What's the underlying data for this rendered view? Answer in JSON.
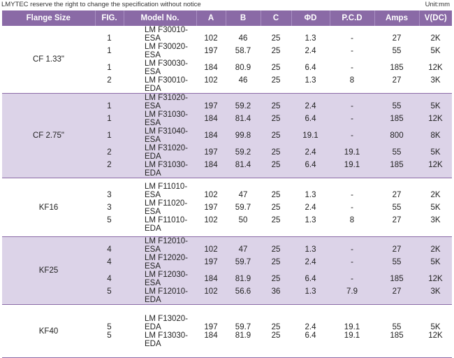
{
  "notice": "LMYTEC reserve the right to change the specification without notice",
  "unit": "Unit:mm",
  "headers": [
    "Flange Size",
    "FIG.",
    "Model No.",
    "A",
    "B",
    "C",
    "ΦD",
    "P.C.D",
    "Amps",
    "V(DC)"
  ],
  "groups": [
    {
      "flange": "CF 1.33\"",
      "shaded": false,
      "row_height": 18,
      "pad_top": 6,
      "pad_bottom": 6,
      "rows": [
        [
          "1",
          "LM F30010-ESA",
          "102",
          "46",
          "25",
          "1.3",
          "-",
          "27",
          "2K"
        ],
        [
          "1",
          "LM F30020-ESA",
          "197",
          "58.7",
          "25",
          "2.4",
          "-",
          "55",
          "5K"
        ],
        [
          "1",
          "LM F30030-ESA",
          "184",
          "80.9",
          "25",
          "6.4",
          "-",
          "185",
          "12K"
        ],
        [
          "2",
          "LM F30010-EDA",
          "102",
          "46",
          "25",
          "1.3",
          "8",
          "27",
          "3K"
        ]
      ]
    },
    {
      "flange": "CF 2.75\"",
      "shaded": true,
      "row_height": 15,
      "pad_top": 6,
      "pad_bottom": 6,
      "rows": [
        [
          "1",
          "LM F31020-ESA",
          "197",
          "59.2",
          "25",
          "2.4",
          "-",
          "55",
          "5K"
        ],
        [
          "1",
          "LM F31030-ESA",
          "184",
          "81.4",
          "25",
          "6.4",
          "-",
          "185",
          "12K"
        ],
        [
          "1",
          "LM F31040-ESA",
          "184",
          "99.8",
          "25",
          "19.1",
          "-",
          "800",
          "8K"
        ],
        [
          "2",
          "LM F31020-EDA",
          "197",
          "59.2",
          "25",
          "2.4",
          "19.1",
          "55",
          "5K"
        ],
        [
          "2",
          "LM F31030-EDA",
          "184",
          "81.4",
          "25",
          "6.4",
          "19.1",
          "185",
          "12K"
        ]
      ]
    },
    {
      "flange": "KF16",
      "shaded": false,
      "row_height": 23,
      "pad_top": 7,
      "pad_bottom": 7,
      "rows": [
        [
          "3",
          "LM F11010-ESA",
          "102",
          "47",
          "25",
          "1.3",
          "-",
          "27",
          "2K"
        ],
        [
          "3",
          "LM F11020-ESA",
          "197",
          "59.7",
          "25",
          "2.4",
          "-",
          "55",
          "5K"
        ],
        [
          "5",
          "LM F11010-EDA",
          "102",
          "50",
          "25",
          "1.3",
          "8",
          "27",
          "3K"
        ]
      ]
    },
    {
      "flange": "KF25",
      "shaded": true,
      "row_height": 18,
      "pad_top": 5,
      "pad_bottom": 5,
      "rows": [
        [
          "4",
          "LM F12010-ESA",
          "102",
          "47",
          "25",
          "1.3",
          "-",
          "27",
          "2K"
        ],
        [
          "4",
          "LM F12020-ESA",
          "197",
          "59.7",
          "25",
          "2.4",
          "-",
          "55",
          "5K"
        ],
        [
          "4",
          "LM F12030-ESA",
          "184",
          "81.9",
          "25",
          "6.4",
          "-",
          "185",
          "12K"
        ],
        [
          "5",
          "LM F12010-EDA",
          "102",
          "56.6",
          "36",
          "1.3",
          "7.9",
          "27",
          "3K"
        ]
      ]
    },
    {
      "flange": "KF40",
      "shaded": false,
      "row_height": 28,
      "pad_top": 10,
      "pad_bottom": 10,
      "rows": [
        [
          "5",
          "LM F13020-EDA",
          "197",
          "59.7",
          "25",
          "2.4",
          "19.1",
          "55",
          "5K"
        ],
        [
          "5",
          "LM F13030-EDA",
          "184",
          "81.9",
          "25",
          "6.4",
          "19.1",
          "185",
          "12K"
        ]
      ]
    }
  ]
}
